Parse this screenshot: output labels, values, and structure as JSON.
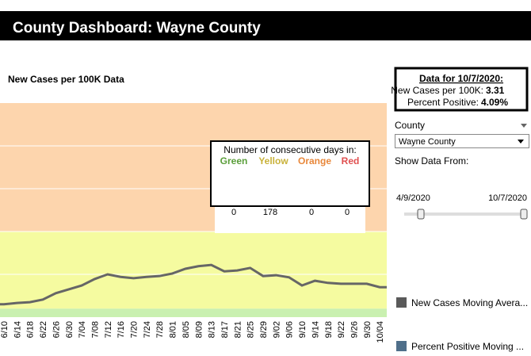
{
  "header": {
    "title": "County Dashboard: Wayne County"
  },
  "info_box": {
    "title": "Data for 10/7/2020:",
    "new_cases_label": "New Cases per 100K:",
    "new_cases_value": "3.31",
    "percent_label": "Percent Positive:",
    "percent_value": "4.09%"
  },
  "sidebar": {
    "county_label": "County",
    "county_value": "Wayne County",
    "range_label": "Show Data From:",
    "range_start": "4/9/2020",
    "range_end": "10/7/2020",
    "legend": [
      "New Cases Moving Avera...",
      "Percent Positive Moving ..."
    ]
  },
  "days_box": {
    "title": "Number of consecutive days in:",
    "labels": [
      "Green",
      "Yellow",
      "Orange",
      "Red"
    ],
    "values": [
      0,
      178,
      0,
      0
    ]
  },
  "chart_data": {
    "type": "line",
    "title": "New Cases per 100K Data",
    "categories": [
      "6/10",
      "6/14",
      "6/18",
      "6/22",
      "6/26",
      "6/30",
      "7/04",
      "7/08",
      "7/12",
      "7/16",
      "7/20",
      "7/24",
      "7/28",
      "8/01",
      "8/05",
      "8/09",
      "8/13",
      "8/17",
      "8/21",
      "8/25",
      "8/29",
      "9/02",
      "9/06",
      "9/10",
      "9/14",
      "9/18",
      "9/22",
      "9/26",
      "9/30",
      "10/04"
    ],
    "series": [
      {
        "name": "New Cases Moving Avera...",
        "color": "#666666",
        "values": [
          3.3,
          3.33,
          3.35,
          3.41,
          3.56,
          3.65,
          3.74,
          3.89,
          4.0,
          3.94,
          3.91,
          3.94,
          3.96,
          4.02,
          4.13,
          4.19,
          4.22,
          4.07,
          4.09,
          4.15,
          3.96,
          3.98,
          3.93,
          3.74,
          3.85,
          3.8,
          3.78,
          3.78,
          3.78,
          3.7
        ]
      }
    ],
    "ylim": [
      3,
      8
    ],
    "bands": [
      {
        "color": "#c9f0b0",
        "max": 3.2
      },
      {
        "color": "#f5fba0",
        "max": 5
      },
      {
        "color": "#fdd5ad",
        "max": 8
      }
    ],
    "legend_colors": [
      "#5a5a5a",
      "#4f6f8a"
    ]
  }
}
